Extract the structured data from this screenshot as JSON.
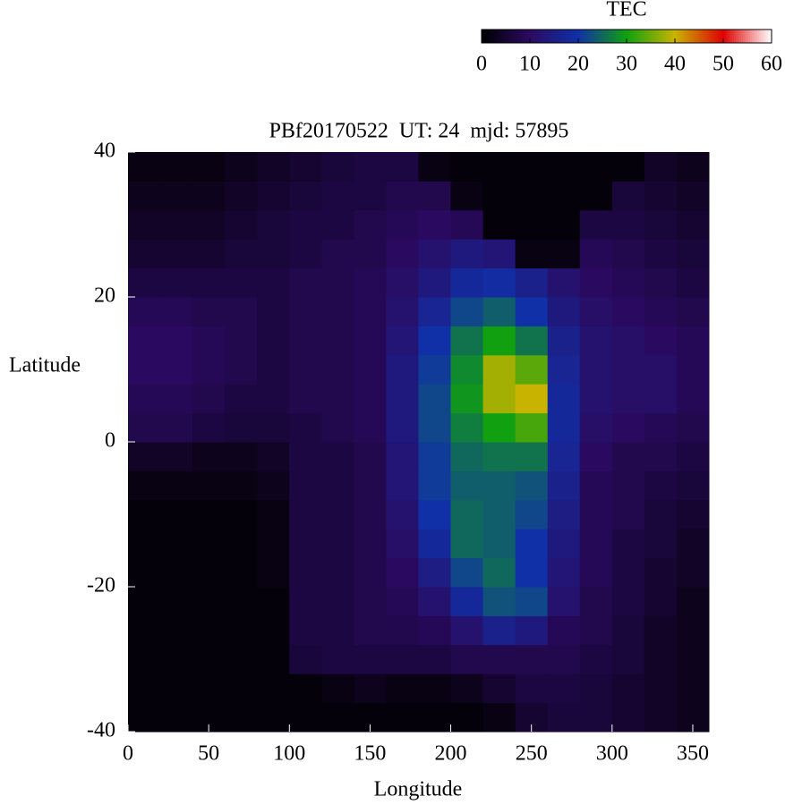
{
  "chart_data": {
    "type": "heatmap",
    "title": "PBf20170522  UT: 24  mjd: 57895",
    "x_label": "Longitude",
    "y_label": "Latitude",
    "x": [
      10,
      30,
      50,
      70,
      90,
      110,
      130,
      150,
      170,
      190,
      210,
      230,
      250,
      270,
      290,
      310,
      330,
      350
    ],
    "y": [
      -38,
      -34,
      -30,
      -26,
      -22,
      -18,
      -14,
      -10,
      -6,
      -2,
      2,
      6,
      10,
      14,
      18,
      22,
      26,
      30,
      34,
      38
    ],
    "z": [
      [
        1,
        1,
        1,
        1,
        1,
        1,
        1,
        1,
        1,
        1,
        1,
        2,
        5,
        6,
        6,
        5,
        4,
        3
      ],
      [
        1,
        1,
        1,
        1,
        1,
        1,
        2,
        3,
        2,
        2,
        3,
        5,
        7,
        7,
        6,
        5,
        4,
        3
      ],
      [
        1,
        1,
        1,
        1,
        1,
        6,
        7,
        7,
        7,
        7,
        8,
        8,
        8,
        8,
        7,
        6,
        4,
        3
      ],
      [
        1,
        1,
        1,
        1,
        1,
        7,
        7,
        8,
        8,
        9,
        12,
        16,
        14,
        9,
        8,
        6,
        4,
        3
      ],
      [
        1,
        1,
        1,
        1,
        1,
        7,
        7,
        8,
        9,
        12,
        18,
        23,
        22,
        12,
        8,
        7,
        5,
        3
      ],
      [
        1,
        1,
        1,
        1,
        2,
        7,
        7,
        8,
        10,
        15,
        22,
        25,
        20,
        13,
        9,
        7,
        5,
        4
      ],
      [
        1,
        1,
        1,
        1,
        2,
        7,
        7,
        8,
        11,
        18,
        25,
        24,
        20,
        14,
        9,
        7,
        6,
        4
      ],
      [
        1,
        1,
        1,
        1,
        2,
        7,
        7,
        8,
        12,
        20,
        25,
        24,
        22,
        15,
        9,
        8,
        6,
        5
      ],
      [
        2,
        2,
        2,
        2,
        3,
        7,
        7,
        8,
        13,
        21,
        24,
        24,
        23,
        16,
        9,
        8,
        7,
        6
      ],
      [
        4,
        4,
        3,
        3,
        4,
        7,
        7,
        8,
        13,
        21,
        25,
        26,
        26,
        17,
        10,
        8,
        8,
        7
      ],
      [
        8,
        8,
        7,
        6,
        6,
        7,
        8,
        9,
        14,
        22,
        27,
        30,
        33,
        18,
        11,
        10,
        9,
        8
      ],
      [
        9,
        9,
        8,
        7,
        7,
        8,
        8,
        9,
        14,
        22,
        29,
        38,
        40,
        18,
        12,
        11,
        11,
        9
      ],
      [
        10,
        10,
        9,
        8,
        7,
        8,
        8,
        9,
        14,
        21,
        28,
        38,
        34,
        17,
        12,
        11,
        11,
        9
      ],
      [
        10,
        10,
        9,
        8,
        7,
        8,
        8,
        9,
        13,
        20,
        26,
        30,
        26,
        16,
        12,
        11,
        10,
        9
      ],
      [
        9,
        9,
        8,
        8,
        7,
        8,
        8,
        9,
        12,
        17,
        22,
        24,
        20,
        14,
        11,
        10,
        9,
        8
      ],
      [
        7,
        7,
        7,
        7,
        7,
        8,
        8,
        9,
        11,
        14,
        18,
        19,
        16,
        12,
        10,
        9,
        8,
        7
      ],
      [
        5,
        5,
        5,
        6,
        6,
        7,
        8,
        8,
        10,
        12,
        14,
        13,
        2,
        2,
        9,
        8,
        7,
        6
      ],
      [
        4,
        4,
        4,
        5,
        6,
        7,
        7,
        8,
        9,
        10,
        9,
        1,
        1,
        1,
        7,
        7,
        6,
        5
      ],
      [
        3,
        3,
        3,
        4,
        5,
        6,
        7,
        7,
        8,
        8,
        2,
        1,
        1,
        1,
        1,
        6,
        5,
        4
      ],
      [
        2,
        2,
        2,
        3,
        4,
        5,
        6,
        7,
        7,
        2,
        1,
        1,
        1,
        1,
        1,
        1,
        4,
        3
      ]
    ],
    "xlim": [
      0,
      360
    ],
    "xticks": [
      0,
      50,
      100,
      150,
      200,
      250,
      300,
      350
    ],
    "ylim": [
      -40,
      40
    ],
    "yticks": [
      -40,
      -20,
      0,
      20,
      40
    ],
    "colorbar": {
      "label": "TEC",
      "lim": [
        0,
        60
      ],
      "ticks": [
        0,
        10,
        20,
        30,
        40,
        50,
        60
      ],
      "colors": [
        "#000000",
        "#2a0a60",
        "#1030a8",
        "#10a010",
        "#c8b400",
        "#e00000",
        "#ffffff"
      ]
    }
  }
}
